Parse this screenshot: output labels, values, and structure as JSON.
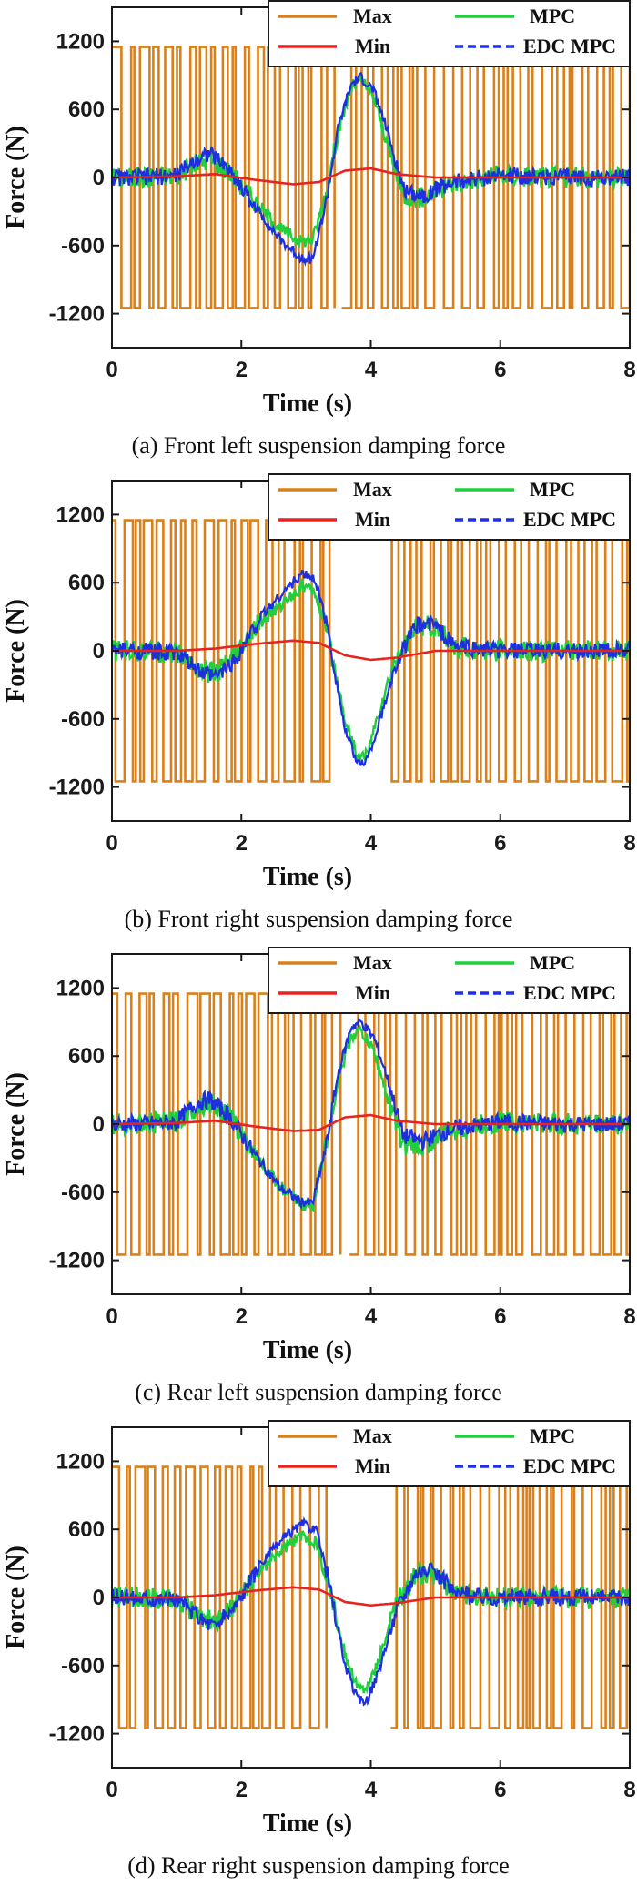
{
  "colors": {
    "max": "#D9801A",
    "min": "#E8231E",
    "mpc": "#1FD03A",
    "edc": "#1E2FE0",
    "axis": "#1a1a1a"
  },
  "chart_data": [
    {
      "type": "line",
      "caption": "(a) Front left suspension damping force",
      "xlabel": "Time (s)",
      "ylabel": "Force (N)",
      "xlim": [
        0,
        8
      ],
      "ylim": [
        -1500,
        1500
      ],
      "xticks": [
        0,
        2,
        4,
        6,
        8
      ],
      "yticks": [
        -1200,
        -600,
        0,
        600,
        1200
      ],
      "legend": [
        "Max",
        "Min",
        "MPC",
        "EDC MPC"
      ],
      "legend_position": "top-right",
      "max_amplitude": 1150,
      "max_gap": [
        3.35,
        3.55
      ],
      "series": [
        {
          "name": "Min",
          "x": [
            0,
            1,
            1.6,
            2.2,
            2.8,
            3.2,
            3.6,
            4,
            4.4,
            5,
            6,
            7,
            8
          ],
          "y": [
            0,
            10,
            30,
            -20,
            -60,
            -40,
            60,
            80,
            30,
            0,
            0,
            0,
            0
          ]
        },
        {
          "name": "MPC",
          "x": [
            0,
            0.5,
            1,
            1.3,
            1.5,
            1.8,
            2.2,
            2.6,
            2.9,
            3.1,
            3.3,
            3.5,
            3.7,
            3.85,
            4.05,
            4.25,
            4.5,
            4.8,
            5.2,
            6,
            7,
            8
          ],
          "y": [
            0,
            0,
            20,
            120,
            170,
            60,
            -200,
            -450,
            -560,
            -550,
            -150,
            400,
            800,
            860,
            700,
            300,
            -150,
            -180,
            -60,
            20,
            0,
            0
          ]
        },
        {
          "name": "EDC MPC",
          "x": [
            0,
            0.5,
            1,
            1.3,
            1.5,
            1.8,
            2.2,
            2.6,
            2.9,
            3.1,
            3.3,
            3.5,
            3.7,
            3.85,
            4.05,
            4.25,
            4.5,
            4.8,
            5.2,
            6,
            7,
            8
          ],
          "y": [
            0,
            0,
            20,
            160,
            220,
            80,
            -250,
            -550,
            -700,
            -720,
            -250,
            450,
            820,
            880,
            760,
            420,
            -100,
            -160,
            -50,
            20,
            0,
            0
          ]
        }
      ]
    },
    {
      "type": "line",
      "caption": "(b) Front right suspension damping force",
      "xlabel": "Time (s)",
      "ylabel": "Force (N)",
      "xlim": [
        0,
        8
      ],
      "ylim": [
        -1500,
        1500
      ],
      "xticks": [
        0,
        2,
        4,
        6,
        8
      ],
      "yticks": [
        -1200,
        -600,
        0,
        600,
        1200
      ],
      "legend": [
        "Max",
        "Min",
        "MPC",
        "EDC MPC"
      ],
      "legend_position": "top-right",
      "max_amplitude": 1150,
      "max_gap": [
        3.3,
        4.2
      ],
      "series": [
        {
          "name": "Min",
          "x": [
            0,
            1,
            1.6,
            2.2,
            2.8,
            3.2,
            3.6,
            4,
            4.4,
            5,
            6,
            7,
            8
          ],
          "y": [
            0,
            0,
            20,
            60,
            90,
            70,
            -40,
            -80,
            -60,
            0,
            0,
            0,
            0
          ]
        },
        {
          "name": "MPC",
          "x": [
            0,
            0.5,
            1,
            1.4,
            1.6,
            1.9,
            2.3,
            2.7,
            2.95,
            3.15,
            3.35,
            3.6,
            3.8,
            3.95,
            4.15,
            4.4,
            4.7,
            4.95,
            5.3,
            6,
            7,
            8
          ],
          "y": [
            0,
            0,
            -20,
            -180,
            -200,
            -60,
            250,
            450,
            580,
            500,
            100,
            -600,
            -950,
            -900,
            -500,
            -50,
            200,
            220,
            30,
            0,
            0,
            0
          ]
        },
        {
          "name": "EDC MPC",
          "x": [
            0,
            0.5,
            1,
            1.4,
            1.6,
            1.9,
            2.3,
            2.7,
            2.95,
            3.15,
            3.35,
            3.6,
            3.8,
            3.95,
            4.15,
            4.4,
            4.7,
            4.95,
            5.3,
            6,
            7,
            8
          ],
          "y": [
            0,
            0,
            -20,
            -200,
            -230,
            -80,
            300,
            550,
            680,
            620,
            150,
            -700,
            -1000,
            -950,
            -600,
            -100,
            220,
            250,
            40,
            0,
            0,
            0
          ]
        }
      ]
    },
    {
      "type": "line",
      "caption": "(c) Rear left suspension damping force",
      "xlabel": "Time (s)",
      "ylabel": "Force (N)",
      "xlim": [
        0,
        8
      ],
      "ylim": [
        -1500,
        1500
      ],
      "xticks": [
        0,
        2,
        4,
        6,
        8
      ],
      "yticks": [
        -1200,
        -600,
        0,
        600,
        1200
      ],
      "legend": [
        "Max",
        "Min",
        "MPC",
        "EDC MPC"
      ],
      "legend_position": "top-right",
      "max_amplitude": 1150,
      "max_gap": [
        3.45,
        3.55
      ],
      "series": [
        {
          "name": "Min",
          "x": [
            0,
            1,
            1.6,
            2.2,
            2.8,
            3.2,
            3.6,
            4,
            4.4,
            5,
            6,
            7,
            8
          ],
          "y": [
            0,
            10,
            30,
            -20,
            -60,
            -50,
            60,
            80,
            30,
            0,
            0,
            0,
            0
          ]
        },
        {
          "name": "MPC",
          "x": [
            0,
            0.5,
            1,
            1.3,
            1.5,
            1.8,
            2.2,
            2.6,
            2.9,
            3.1,
            3.3,
            3.5,
            3.7,
            3.85,
            4.05,
            4.25,
            4.5,
            4.8,
            5.2,
            6,
            7,
            8
          ],
          "y": [
            0,
            0,
            20,
            150,
            200,
            80,
            -250,
            -550,
            -700,
            -720,
            -200,
            400,
            780,
            820,
            640,
            250,
            -180,
            -200,
            -60,
            20,
            0,
            0
          ]
        },
        {
          "name": "EDC MPC",
          "x": [
            0,
            0.5,
            1,
            1.3,
            1.5,
            1.8,
            2.2,
            2.6,
            2.9,
            3.1,
            3.3,
            3.5,
            3.7,
            3.85,
            4.05,
            4.25,
            4.5,
            4.8,
            5.2,
            6,
            7,
            8
          ],
          "y": [
            0,
            0,
            20,
            180,
            220,
            80,
            -260,
            -560,
            -680,
            -700,
            -220,
            460,
            860,
            900,
            760,
            420,
            -100,
            -150,
            -50,
            20,
            0,
            0
          ]
        }
      ]
    },
    {
      "type": "line",
      "caption": "(d) Rear right suspension damping force",
      "xlabel": "Time (s)",
      "ylabel": "Force (N)",
      "xlim": [
        0,
        8
      ],
      "ylim": [
        -1500,
        1500
      ],
      "xticks": [
        0,
        2,
        4,
        6,
        8
      ],
      "yticks": [
        -1200,
        -600,
        0,
        600,
        1200
      ],
      "legend": [
        "Max",
        "Min",
        "MPC",
        "EDC MPC"
      ],
      "legend_position": "top-right",
      "max_amplitude": 1150,
      "max_gap": [
        3.3,
        4.2
      ],
      "series": [
        {
          "name": "Min",
          "x": [
            0,
            1,
            1.6,
            2.2,
            2.8,
            3.2,
            3.6,
            4,
            4.4,
            5,
            6,
            7,
            8
          ],
          "y": [
            0,
            0,
            20,
            60,
            90,
            70,
            -40,
            -70,
            -50,
            0,
            0,
            0,
            0
          ]
        },
        {
          "name": "MPC",
          "x": [
            0,
            0.5,
            1,
            1.4,
            1.6,
            1.9,
            2.3,
            2.7,
            2.95,
            3.15,
            3.35,
            3.6,
            3.8,
            3.95,
            4.15,
            4.4,
            4.7,
            4.95,
            5.3,
            6,
            7,
            8
          ],
          "y": [
            0,
            0,
            -20,
            -180,
            -220,
            -60,
            250,
            450,
            550,
            480,
            100,
            -500,
            -800,
            -800,
            -500,
            -50,
            200,
            220,
            30,
            0,
            0,
            0
          ]
        },
        {
          "name": "EDC MPC",
          "x": [
            0,
            0.5,
            1,
            1.4,
            1.6,
            1.9,
            2.3,
            2.7,
            2.95,
            3.15,
            3.35,
            3.6,
            3.8,
            3.95,
            4.15,
            4.4,
            4.7,
            4.95,
            5.3,
            6,
            7,
            8
          ],
          "y": [
            0,
            0,
            -20,
            -200,
            -250,
            -80,
            300,
            550,
            650,
            600,
            150,
            -600,
            -900,
            -900,
            -600,
            -100,
            230,
            260,
            40,
            0,
            0,
            0
          ]
        }
      ]
    }
  ]
}
